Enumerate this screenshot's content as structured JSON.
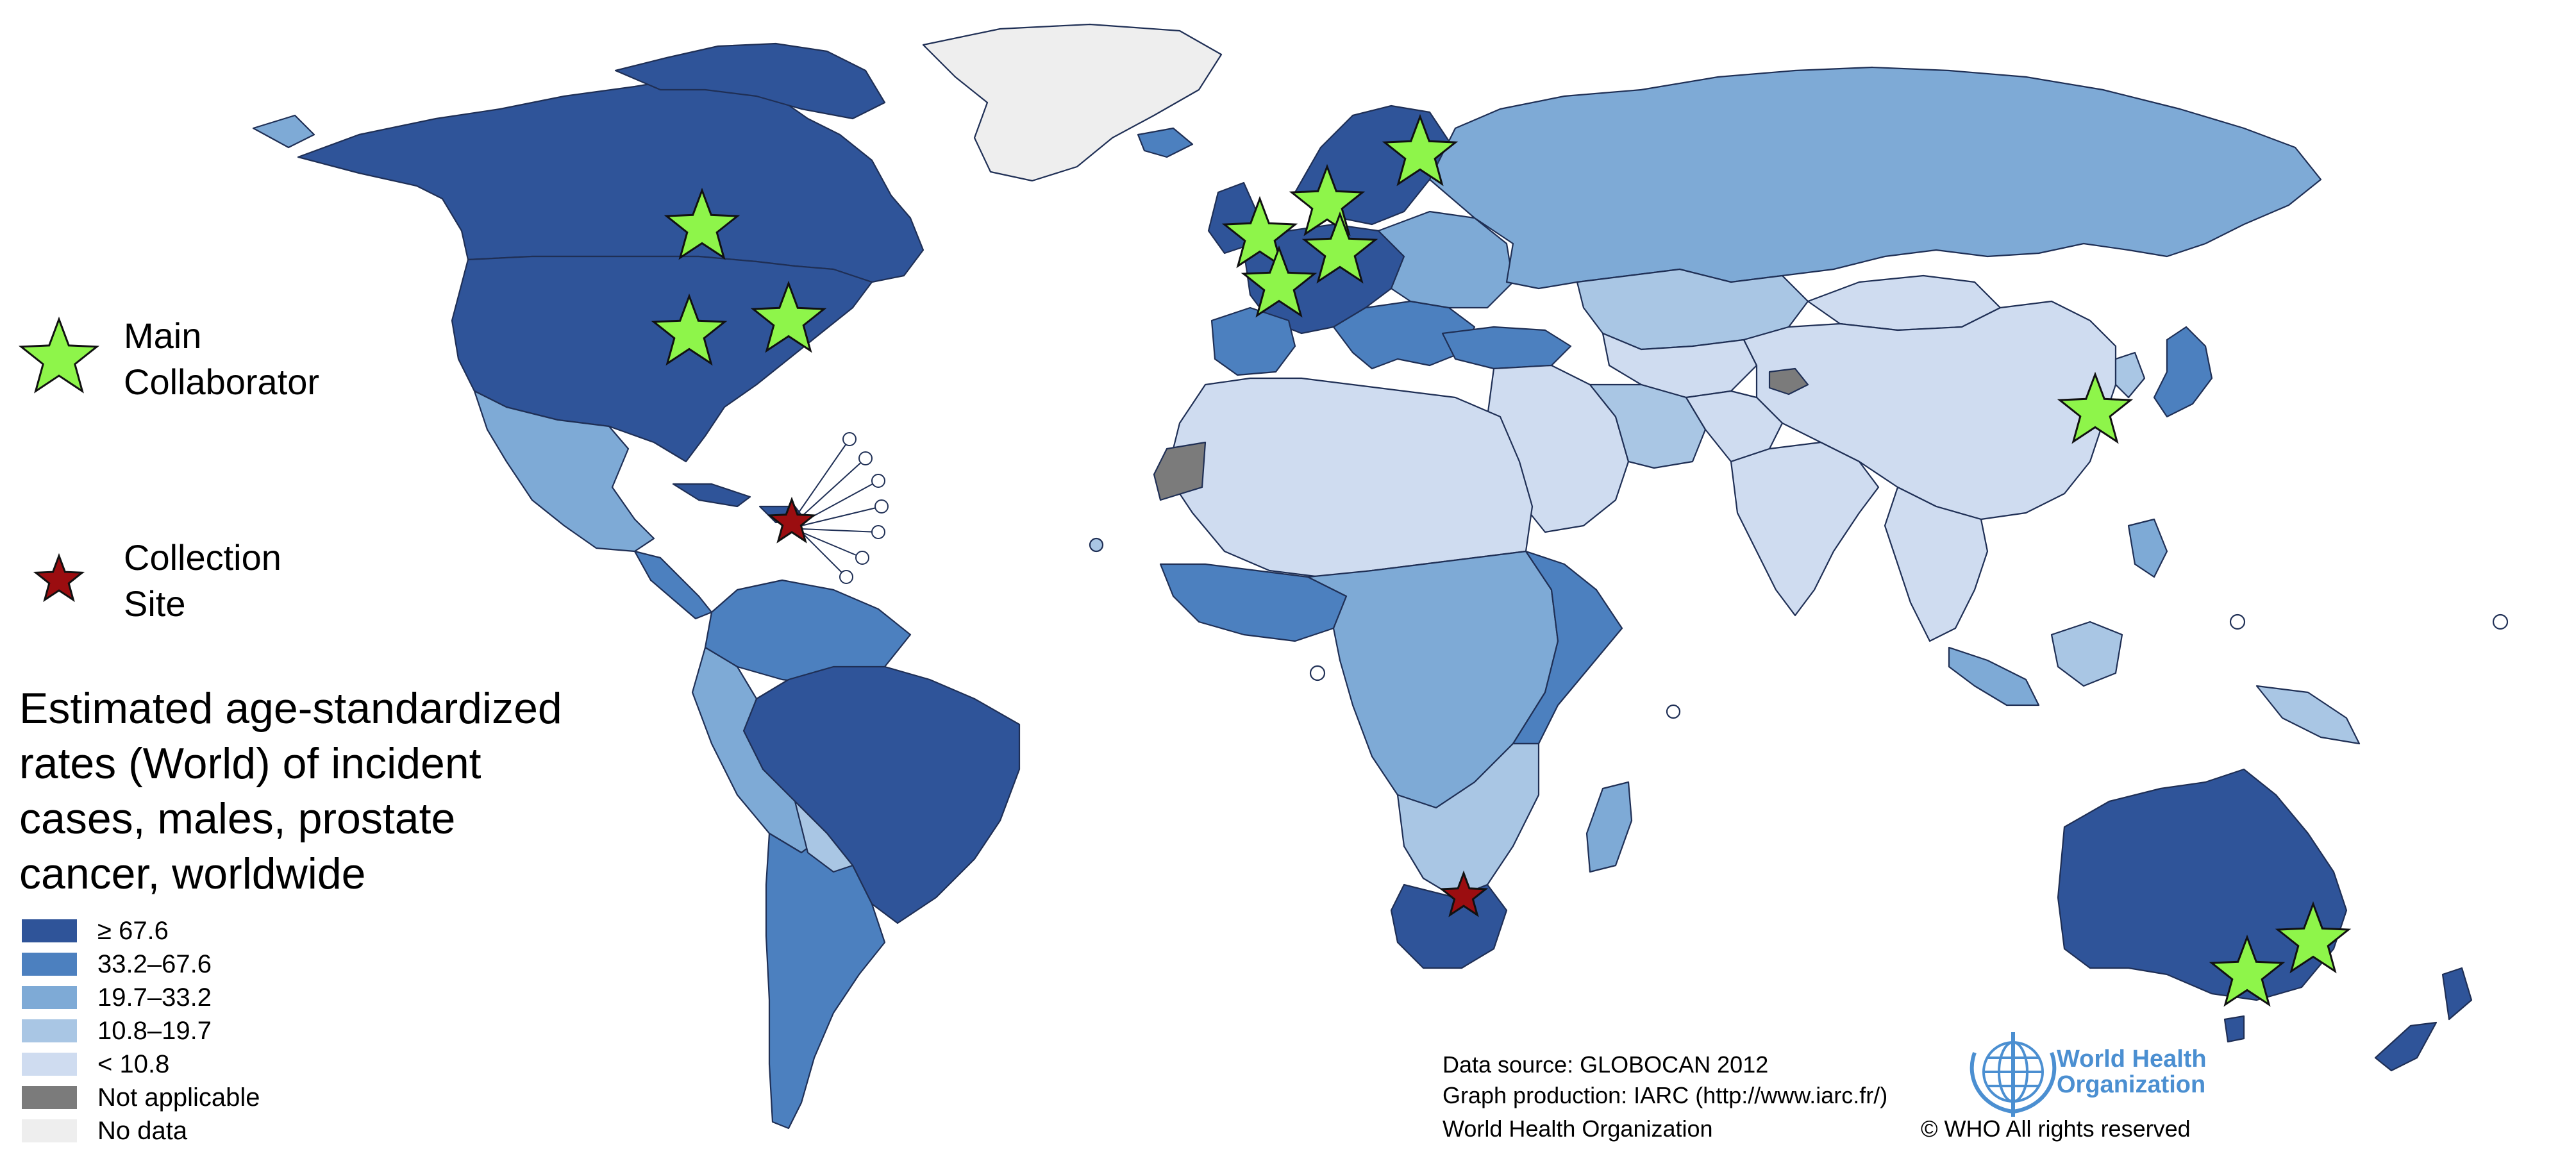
{
  "colors": {
    "bin_1": "#2f5499",
    "bin_2": "#4c80bf",
    "bin_3": "#7eaad6",
    "bin_4": "#a9c6e4",
    "bin_5": "#cfdcf0",
    "not_applicable": "#7b7b7b",
    "no_data": "#eeeeee",
    "main_star": "#8ef54a",
    "site_star": "#9b0d10",
    "who_blue": "#4b8fd1"
  },
  "markers": {
    "main": {
      "label_line1": "Main",
      "label_line2": "Collaborator",
      "icon": "green-star-icon"
    },
    "site": {
      "label_line1": "Collection",
      "label_line2": "Site",
      "icon": "red-star-icon"
    }
  },
  "legend": {
    "title": "Estimated age-standardized rates (World) of incident cases, males, prostate cancer, worldwide",
    "items": [
      {
        "label": "≥ 67.6"
      },
      {
        "label": "33.2–67.6"
      },
      {
        "label": "19.7–33.2"
      },
      {
        "label": "10.8–19.7"
      },
      {
        "label": "< 10.8"
      },
      {
        "label": "Not applicable"
      },
      {
        "label": "No data"
      }
    ]
  },
  "credits": {
    "source": "Data source: GLOBOCAN 2012",
    "production": "Graph production: IARC (http://www.iarc.fr/)",
    "org": "World Health Organization",
    "rights": "© WHO All rights reserved"
  },
  "logo": {
    "name_line1": "World Health",
    "name_line2": "Organization",
    "icon": "who-emblem-icon"
  }
}
